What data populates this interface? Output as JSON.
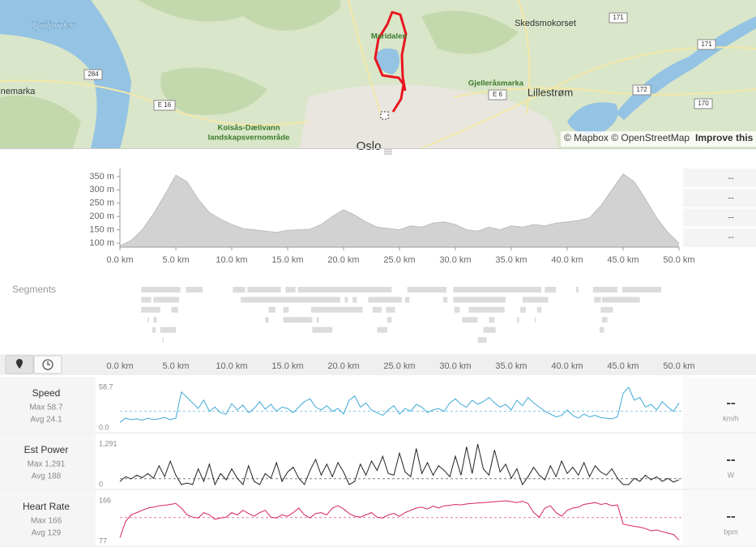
{
  "map": {
    "labels": [
      "Tyrifjorden",
      "nemarka",
      "284",
      "E 16",
      "Koisås-Dælivann",
      "landskapsvernområde",
      "Maridalen",
      "Oslo",
      "Skedsmokorset",
      "171",
      "171",
      "Gjelleråsmarka",
      "E 6",
      "Lillestrøm",
      "172",
      "170"
    ],
    "attribution": "© Mapbox © OpenStreetMap",
    "improve": "Improve this map"
  },
  "distance_axis": {
    "xlim": [
      0,
      50
    ],
    "xticks": [
      {
        "value": 0,
        "label": "0.0 km"
      },
      {
        "value": 5,
        "label": "5.0 km"
      },
      {
        "value": 10,
        "label": "10.0 km"
      },
      {
        "value": 15,
        "label": "15.0 km"
      },
      {
        "value": 20,
        "label": "20.0 km"
      },
      {
        "value": 25,
        "label": "25.0 km"
      },
      {
        "value": 30,
        "label": "30.0 km"
      },
      {
        "value": 35,
        "label": "35.0 km"
      },
      {
        "value": 40,
        "label": "40.0 km"
      },
      {
        "value": 45,
        "label": "45.0 km"
      },
      {
        "value": 50,
        "label": "50.0 km"
      }
    ]
  },
  "elevation": {
    "type": "area",
    "color": "#d2d2d2",
    "distance_km": [
      0,
      1,
      2,
      3,
      4,
      5,
      6,
      7,
      8,
      9,
      10,
      11,
      12,
      13,
      14,
      15,
      16,
      17,
      18,
      19,
      20,
      21,
      22,
      23,
      24,
      25,
      26,
      27,
      28,
      29,
      30,
      31,
      32,
      33,
      34,
      35,
      36,
      37,
      38,
      39,
      40,
      41,
      42,
      43,
      44,
      45,
      46,
      47,
      48,
      49,
      50
    ],
    "values": [
      90,
      110,
      150,
      210,
      280,
      355,
      330,
      265,
      215,
      190,
      170,
      155,
      150,
      145,
      140,
      148,
      150,
      152,
      170,
      200,
      225,
      205,
      180,
      160,
      155,
      150,
      165,
      160,
      175,
      180,
      170,
      150,
      145,
      160,
      150,
      165,
      160,
      170,
      165,
      175,
      180,
      185,
      195,
      240,
      300,
      360,
      330,
      265,
      195,
      140,
      100
    ],
    "ylim": [
      85,
      380
    ],
    "yticks": [
      {
        "value": 100,
        "label": "100 m"
      },
      {
        "value": 150,
        "label": "150 m"
      },
      {
        "value": 200,
        "label": "200 m"
      },
      {
        "value": 250,
        "label": "250 m"
      },
      {
        "value": 300,
        "label": "300 m"
      },
      {
        "value": 350,
        "label": "350 m"
      }
    ],
    "readouts": [
      "--",
      "--",
      "--",
      "--"
    ]
  },
  "segments": {
    "label": "Segments",
    "color": "#dcdcdc",
    "rows": [
      [
        [
          1.9,
          5.4
        ],
        [
          5.9,
          7.4
        ],
        [
          10.1,
          11.2
        ],
        [
          11.4,
          14.4
        ],
        [
          14.8,
          15.7
        ],
        [
          15.9,
          24.3
        ],
        [
          25.7,
          29.2
        ],
        [
          29.8,
          37.7
        ],
        [
          38.0,
          39.0
        ],
        [
          40.8,
          41.0
        ],
        [
          42.3,
          44.5
        ],
        [
          44.9,
          48.4
        ]
      ],
      [
        [
          1.9,
          2.8
        ],
        [
          3.0,
          5.3
        ],
        [
          10.8,
          19.7
        ],
        [
          20.1,
          20.4
        ],
        [
          20.8,
          21.2
        ],
        [
          22.2,
          25.2
        ],
        [
          25.5,
          25.9
        ],
        [
          28.9,
          29.3
        ],
        [
          29.8,
          34.5
        ],
        [
          36.0,
          38.3
        ],
        [
          42.4,
          43.0
        ],
        [
          43.1,
          46.5
        ]
      ],
      [
        [
          1.9,
          3.6
        ],
        [
          4.6,
          5.2
        ],
        [
          13.3,
          13.9
        ],
        [
          14.6,
          15.1
        ],
        [
          17.1,
          21.7
        ],
        [
          22.6,
          23.4
        ],
        [
          23.8,
          24.6
        ],
        [
          29.9,
          30.4
        ],
        [
          31.2,
          34.4
        ],
        [
          35.8,
          36.3
        ],
        [
          37.3,
          37.7
        ],
        [
          43.0,
          44.1
        ]
      ],
      [
        [
          2.5,
          2.6
        ],
        [
          3.0,
          3.3
        ],
        [
          13.0,
          13.3
        ],
        [
          14.6,
          17.2
        ],
        [
          17.6,
          17.8
        ],
        [
          23.9,
          24.3
        ],
        [
          30.6,
          32.0
        ],
        [
          33.0,
          33.5
        ],
        [
          35.5,
          35.7
        ],
        [
          37.1,
          37.2
        ],
        [
          43.1,
          43.6
        ]
      ],
      [
        [
          2.9,
          3.2
        ],
        [
          3.6,
          5.0
        ],
        [
          17.2,
          19.0
        ],
        [
          23.0,
          23.9
        ],
        [
          32.5,
          33.6
        ],
        [
          42.9,
          43.3
        ]
      ],
      [
        [
          3.8,
          3.9
        ],
        [
          32.0,
          32.8
        ]
      ]
    ]
  },
  "streams": {
    "type": "line",
    "distance_km": [
      0,
      0.5,
      1,
      1.5,
      2,
      2.5,
      3,
      3.5,
      4,
      4.5,
      5,
      5.5,
      6,
      6.5,
      7,
      7.5,
      8,
      8.5,
      9,
      9.5,
      10,
      10.5,
      11,
      11.5,
      12,
      12.5,
      13,
      13.5,
      14,
      14.5,
      15,
      15.5,
      16,
      16.5,
      17,
      17.5,
      18,
      18.5,
      19,
      19.5,
      20,
      20.5,
      21,
      21.5,
      22,
      22.5,
      23,
      23.5,
      24,
      24.5,
      25,
      25.5,
      26,
      26.5,
      27,
      27.5,
      28,
      28.5,
      29,
      29.5,
      30,
      30.5,
      31,
      31.5,
      32,
      32.5,
      33,
      33.5,
      34,
      34.5,
      35,
      35.5,
      36,
      36.5,
      37,
      37.5,
      38,
      38.5,
      39,
      39.5,
      40,
      40.5,
      41,
      41.5,
      42,
      42.5,
      43,
      43.5,
      44,
      44.5,
      45,
      45.5,
      46,
      46.5,
      47,
      47.5,
      48,
      48.5,
      49,
      49.5,
      50
    ],
    "series": [
      {
        "name": "Speed",
        "color": "#3ea8d8",
        "unit": "km/h",
        "readout": "--",
        "max": {
          "value": 58.7,
          "label": "Max 58.7"
        },
        "avg": {
          "value": 24.1,
          "label": "Avg 24.1"
        },
        "ylim": [
          0,
          58.7
        ],
        "yticks": [
          {
            "value": 0,
            "label": "0.0"
          },
          58.7
        ],
        "values": [
          8,
          14,
          12,
          13,
          11,
          14,
          12,
          13,
          15,
          12,
          14,
          52,
          44,
          36,
          28,
          40,
          24,
          30,
          22,
          20,
          35,
          26,
          33,
          22,
          28,
          38,
          27,
          34,
          24,
          30,
          28,
          22,
          30,
          38,
          42,
          30,
          26,
          32,
          24,
          28,
          20,
          40,
          46,
          30,
          36,
          26,
          22,
          18,
          26,
          32,
          20,
          28,
          24,
          34,
          30,
          22,
          26,
          28,
          24,
          36,
          42,
          34,
          30,
          40,
          34,
          38,
          44,
          36,
          30,
          34,
          26,
          40,
          32,
          44,
          36,
          30,
          24,
          20,
          16,
          18,
          26,
          18,
          14,
          20,
          16,
          18,
          15,
          14,
          13,
          16,
          50,
          58.7,
          40,
          44,
          30,
          34,
          26,
          38,
          30,
          24,
          36
        ]
      },
      {
        "name": "Est Power",
        "color": "#222222",
        "unit": "W",
        "readout": "--",
        "max": {
          "value": 1291,
          "label": "Max 1,291"
        },
        "avg": {
          "value": 188,
          "label": "Avg 188"
        },
        "ylim": [
          0,
          1291
        ],
        "yticks": [
          0,
          {
            "value": 1291,
            "label": "1,291"
          }
        ],
        "values": [
          100,
          250,
          180,
          300,
          220,
          350,
          200,
          600,
          250,
          750,
          300,
          0,
          50,
          0,
          500,
          100,
          650,
          0,
          350,
          150,
          500,
          200,
          0,
          600,
          100,
          0,
          350,
          200,
          700,
          100,
          400,
          550,
          200,
          0,
          450,
          800,
          300,
          650,
          250,
          700,
          400,
          0,
          100,
          650,
          300,
          750,
          450,
          900,
          350,
          300,
          1000,
          400,
          250,
          1150,
          350,
          700,
          300,
          600,
          450,
          250,
          900,
          300,
          1200,
          350,
          1291,
          500,
          300,
          1100,
          400,
          650,
          200,
          500,
          0,
          250,
          550,
          300,
          150,
          600,
          250,
          750,
          350,
          550,
          300,
          700,
          250,
          600,
          400,
          300,
          500,
          200,
          0,
          0,
          200,
          100,
          300,
          150,
          250,
          100,
          200,
          80,
          150
        ]
      },
      {
        "name": "Heart Rate",
        "color": "#d6245e",
        "unit": "bpm",
        "readout": "--",
        "max": {
          "value": 166,
          "label": "Max 166"
        },
        "avg": {
          "value": 129,
          "label": "Avg 129"
        },
        "ylim": [
          77,
          166
        ],
        "yticks": [
          77,
          166
        ],
        "values": [
          85,
          120,
          135,
          140,
          145,
          150,
          152,
          155,
          156,
          158,
          160,
          150,
          135,
          130,
          128,
          140,
          135,
          125,
          128,
          130,
          140,
          135,
          145,
          138,
          132,
          140,
          145,
          130,
          128,
          135,
          132,
          140,
          150,
          135,
          128,
          138,
          140,
          135,
          150,
          155,
          148,
          138,
          132,
          130,
          135,
          140,
          130,
          128,
          135,
          138,
          132,
          140,
          145,
          150,
          152,
          148,
          154,
          150,
          155,
          156,
          158,
          157,
          159,
          160,
          161,
          162,
          163,
          164,
          165,
          166,
          164,
          162,
          165,
          160,
          140,
          130,
          150,
          155,
          140,
          132,
          145,
          150,
          152,
          158,
          160,
          162,
          158,
          160,
          155,
          157,
          115,
          112,
          110,
          108,
          105,
          100,
          102,
          98,
          95,
          92,
          80
        ]
      }
    ]
  }
}
